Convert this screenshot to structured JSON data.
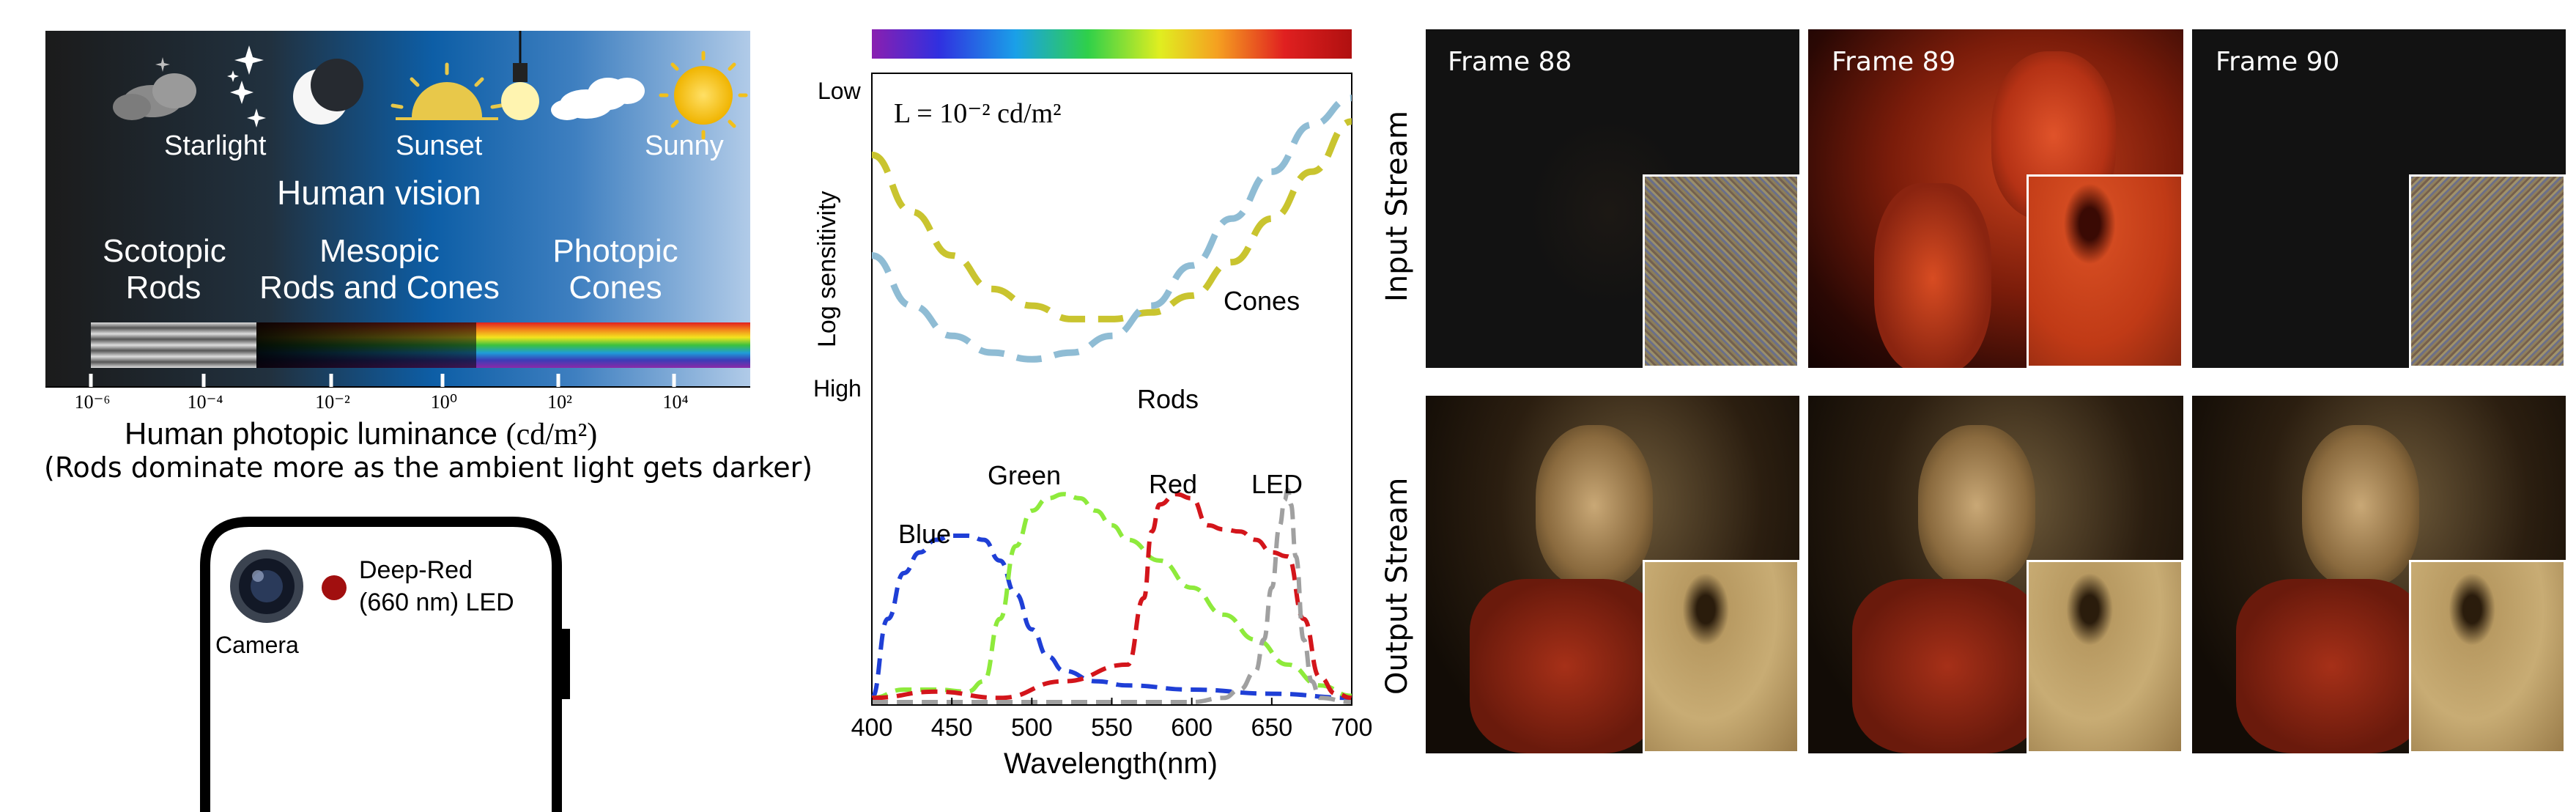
{
  "luminance_panel": {
    "icons": {
      "starlight": "Starlight",
      "sunset": "Sunset",
      "sunny": "Sunny"
    },
    "title": "Human vision",
    "regions": [
      {
        "name": "Scotopic",
        "sub": "Rods"
      },
      {
        "name": "Mesopic",
        "sub": "Rods and Cones"
      },
      {
        "name": "Photopic",
        "sub": "Cones"
      }
    ],
    "tick_labels": [
      "10⁻⁶",
      "10⁻⁴",
      "10⁻²",
      "10⁰",
      "10²",
      "10⁴"
    ],
    "axis_label": "Human photopic luminance",
    "axis_unit": "(cd/m²)",
    "note": "(Rods dominate more as the ambient light gets darker)",
    "colors": {
      "dark": "#1f1f1f",
      "mid": "#0d5fa6",
      "light": "#a9c6e6"
    }
  },
  "phone": {
    "camera_label": "Camera",
    "led_label_line1": "Deep-Red",
    "led_label_line2": "(660 nm) LED",
    "led_color": "#a10f0f"
  },
  "chart_data": [
    {
      "type": "line",
      "panel": "sensitivity",
      "annotation": "L = 10⁻² cd/m²",
      "ylabel": "Log sensitivity",
      "ytick_low": "Low",
      "ytick_high": "High",
      "series": [
        {
          "name": "Cones",
          "color": "#c9c42f",
          "x": [
            400,
            425,
            450,
            475,
            500,
            525,
            550,
            575,
            600,
            625,
            650,
            675,
            700
          ],
          "y": [
            0.85,
            0.68,
            0.55,
            0.45,
            0.4,
            0.36,
            0.36,
            0.38,
            0.43,
            0.53,
            0.66,
            0.8,
            0.95
          ]
        },
        {
          "name": "Rods",
          "color": "#8fbcd4",
          "x": [
            400,
            425,
            450,
            475,
            500,
            525,
            550,
            575,
            600,
            625,
            650,
            675,
            700
          ],
          "y": [
            0.55,
            0.4,
            0.31,
            0.26,
            0.24,
            0.26,
            0.31,
            0.4,
            0.52,
            0.66,
            0.8,
            0.94,
            1.02
          ]
        }
      ]
    },
    {
      "type": "line",
      "panel": "spectral",
      "xlabel": "Wavelength(nm)",
      "x_ticks": [
        400,
        450,
        500,
        550,
        600,
        650,
        700
      ],
      "xlim": [
        400,
        700
      ],
      "series": [
        {
          "name": "Blue",
          "color": "#1f3fd6",
          "x": [
            400,
            410,
            420,
            430,
            440,
            450,
            460,
            470,
            480,
            490,
            500,
            510,
            520,
            540,
            560,
            600,
            650,
            700
          ],
          "y": [
            0.02,
            0.4,
            0.62,
            0.72,
            0.78,
            0.8,
            0.8,
            0.78,
            0.68,
            0.52,
            0.35,
            0.22,
            0.15,
            0.1,
            0.08,
            0.06,
            0.04,
            0.02
          ]
        },
        {
          "name": "Green",
          "color": "#8eea3c",
          "x": [
            400,
            420,
            440,
            460,
            470,
            480,
            490,
            500,
            510,
            520,
            530,
            540,
            550,
            560,
            580,
            600,
            620,
            640,
            660,
            680,
            700
          ],
          "y": [
            0.02,
            0.06,
            0.06,
            0.05,
            0.1,
            0.4,
            0.75,
            0.92,
            0.98,
            1.0,
            0.98,
            0.92,
            0.85,
            0.78,
            0.68,
            0.55,
            0.42,
            0.3,
            0.18,
            0.08,
            0.03
          ]
        },
        {
          "name": "Red",
          "color": "#d3151b",
          "x": [
            400,
            440,
            480,
            520,
            560,
            570,
            575,
            580,
            590,
            600,
            610,
            620,
            630,
            640,
            650,
            660,
            670,
            680,
            690,
            700
          ],
          "y": [
            0.02,
            0.05,
            0.02,
            0.1,
            0.18,
            0.5,
            0.82,
            0.95,
            1.0,
            0.98,
            0.85,
            0.83,
            0.82,
            0.78,
            0.72,
            0.7,
            0.4,
            0.12,
            0.04,
            0.02
          ]
        },
        {
          "name": "LED",
          "color": "#a0a0a0",
          "x": [
            400,
            600,
            620,
            630,
            640,
            645,
            650,
            655,
            658,
            660,
            662,
            665,
            670,
            675,
            680,
            700
          ],
          "y": [
            0.0,
            0.0,
            0.02,
            0.06,
            0.15,
            0.3,
            0.55,
            0.85,
            0.97,
            1.02,
            0.95,
            0.7,
            0.3,
            0.1,
            0.02,
            0.0
          ]
        }
      ]
    }
  ],
  "frames": {
    "columns": [
      "Frame 88",
      "Frame 89",
      "Frame 90"
    ],
    "rows": [
      "Input Stream",
      "Output Stream"
    ]
  }
}
